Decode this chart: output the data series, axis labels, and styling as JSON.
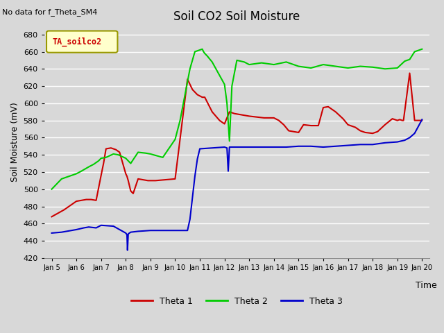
{
  "title": "Soil CO2 Soil Moisture",
  "ylabel": "Soil Moisture (mV)",
  "xlabel": "Time",
  "no_data_text": "No data for f_Theta_SM4",
  "legend_label": "TA_soilco2",
  "ylim": [
    420,
    690
  ],
  "yticks": [
    420,
    440,
    460,
    480,
    500,
    520,
    540,
    560,
    580,
    600,
    620,
    640,
    660,
    680
  ],
  "xtick_labels": [
    "Jan 5",
    "Jan 6",
    "Jan 7",
    "Jan 8",
    "Jan 9",
    "Jan 10",
    "Jan 11",
    "Jan 12",
    "Jan 13",
    "Jan 14",
    "Jan 15",
    "Jan 16",
    "Jan 17",
    "Jan 18",
    "Jan 19",
    "Jan 20"
  ],
  "series": {
    "Theta 1": {
      "color": "#cc0000",
      "x": [
        0,
        0.25,
        0.5,
        0.7,
        0.85,
        1.0,
        1.2,
        1.4,
        1.6,
        1.8,
        2.0,
        2.1,
        2.2,
        2.4,
        2.6,
        2.75,
        3.0,
        3.05,
        3.1,
        3.2,
        3.3,
        3.5,
        3.7,
        3.9,
        4.2,
        5.0,
        5.5,
        5.7,
        5.9,
        6.1,
        6.2,
        6.5,
        6.8,
        7.0,
        7.2,
        7.4,
        7.6,
        7.8,
        8.0,
        8.3,
        8.6,
        9.0,
        9.2,
        9.4,
        9.6,
        10.0,
        10.2,
        10.5,
        10.8,
        11.0,
        11.2,
        11.5,
        11.8,
        12.0,
        12.3,
        12.5,
        12.7,
        13.0,
        13.2,
        13.5,
        13.8,
        14.0,
        14.1,
        14.2,
        14.25,
        14.5,
        14.7,
        14.9,
        15.0
      ],
      "y": [
        468,
        472,
        476,
        480,
        483,
        486,
        487,
        488,
        488,
        487,
        516,
        530,
        547,
        548,
        546,
        543,
        518,
        515,
        510,
        498,
        495,
        512,
        511,
        510,
        510,
        512,
        628,
        616,
        610,
        607,
        607,
        590,
        580,
        576,
        590,
        588,
        587,
        586,
        585,
        584,
        583,
        583,
        580,
        575,
        568,
        566,
        575,
        574,
        574,
        595,
        596,
        590,
        582,
        575,
        572,
        568,
        566,
        565,
        567,
        575,
        582,
        580,
        581,
        580,
        580,
        635,
        580,
        580,
        580
      ]
    },
    "Theta 2": {
      "color": "#00cc00",
      "x": [
        0,
        0.4,
        0.8,
        1.0,
        1.2,
        1.5,
        1.7,
        1.9,
        2.0,
        2.2,
        2.5,
        2.7,
        3.0,
        3.2,
        3.5,
        3.8,
        4.0,
        4.5,
        5.0,
        5.2,
        5.4,
        5.6,
        5.8,
        6.0,
        6.1,
        6.15,
        6.2,
        6.3,
        6.5,
        7.0,
        7.1,
        7.2,
        7.3,
        7.5,
        7.8,
        8.0,
        8.5,
        9.0,
        9.5,
        10.0,
        10.5,
        11.0,
        11.5,
        12.0,
        12.5,
        13.0,
        13.5,
        14.0,
        14.3,
        14.5,
        14.7,
        15.0
      ],
      "y": [
        500,
        512,
        516,
        518,
        521,
        526,
        529,
        533,
        536,
        537,
        541,
        540,
        536,
        530,
        543,
        542,
        541,
        537,
        558,
        580,
        610,
        640,
        660,
        662,
        663,
        660,
        658,
        655,
        648,
        622,
        600,
        556,
        620,
        650,
        648,
        645,
        647,
        645,
        648,
        643,
        641,
        645,
        643,
        641,
        643,
        642,
        640,
        641,
        649,
        651,
        660,
        663
      ]
    },
    "Theta 3": {
      "color": "#0000cc",
      "x": [
        0,
        0.4,
        0.8,
        1.0,
        1.3,
        1.5,
        1.8,
        2.0,
        2.5,
        3.0,
        3.05,
        3.07,
        3.1,
        3.2,
        3.5,
        4.0,
        4.5,
        5.0,
        5.5,
        5.6,
        5.7,
        5.8,
        5.9,
        6.0,
        6.5,
        7.0,
        7.1,
        7.15,
        7.2,
        7.5,
        8.0,
        8.5,
        9.0,
        9.5,
        10.0,
        10.5,
        11.0,
        11.5,
        12.0,
        12.5,
        13.0,
        13.5,
        14.0,
        14.3,
        14.5,
        14.7,
        15.0
      ],
      "y": [
        449,
        450,
        452,
        453,
        455,
        456,
        455,
        458,
        457,
        449,
        447,
        429,
        448,
        450,
        451,
        452,
        452,
        452,
        452,
        465,
        490,
        515,
        535,
        547,
        548,
        549,
        548,
        521,
        549,
        549,
        549,
        549,
        549,
        549,
        550,
        550,
        549,
        550,
        551,
        552,
        552,
        554,
        555,
        557,
        560,
        565,
        581
      ]
    }
  },
  "background_color": "#d8d8d8",
  "plot_bg_color": "#d8d8d8",
  "grid_color": "#ffffff",
  "legend_entries": [
    "Theta 1",
    "Theta 2",
    "Theta 3"
  ],
  "legend_colors": [
    "#cc0000",
    "#00cc00",
    "#0000cc"
  ]
}
